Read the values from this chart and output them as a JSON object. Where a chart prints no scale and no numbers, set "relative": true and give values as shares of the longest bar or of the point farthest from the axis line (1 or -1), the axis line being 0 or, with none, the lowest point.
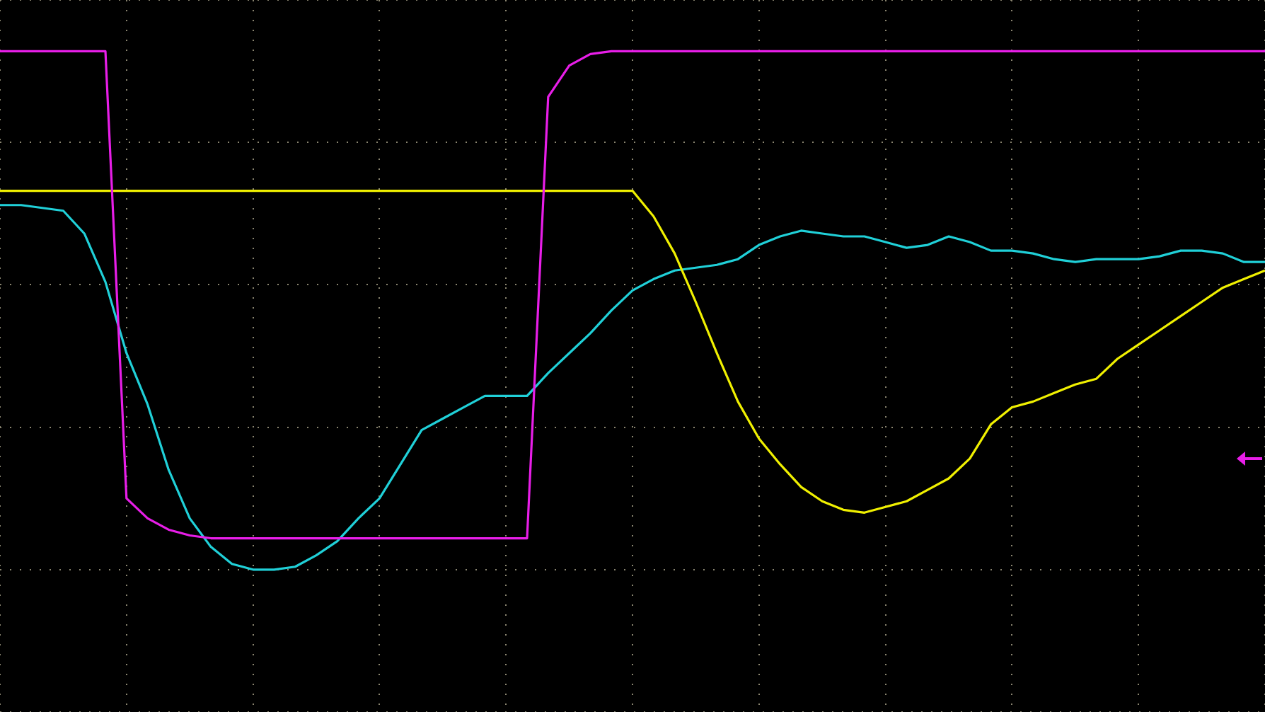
{
  "chart_data": {
    "type": "line",
    "relative": true,
    "grid": true,
    "marker": "none",
    "line_style": "solid",
    "categories": [
      null,
      null,
      null,
      null,
      null,
      null,
      null,
      null,
      null,
      null,
      null,
      null,
      null,
      null,
      null,
      null,
      null,
      null,
      null,
      null,
      null,
      null,
      null,
      null,
      null,
      null,
      null,
      null,
      null,
      null,
      null,
      null,
      null,
      null,
      null,
      null,
      null,
      null,
      null,
      null,
      null,
      null,
      null,
      null,
      null,
      null,
      null,
      null,
      null,
      null,
      null,
      null,
      null,
      null,
      null,
      null,
      null,
      null,
      null,
      null,
      null
    ],
    "series": [
      {
        "color": "#e81ee8",
        "values": [
          0.82,
          0.82,
          0.82,
          0.82,
          0.82,
          0.82,
          -0.75,
          -0.82,
          -0.86,
          -0.88,
          -0.89,
          -0.89,
          -0.89,
          -0.89,
          -0.89,
          -0.89,
          -0.89,
          -0.89,
          -0.89,
          -0.89,
          -0.89,
          -0.89,
          -0.89,
          -0.89,
          -0.89,
          -0.89,
          0.66,
          0.77,
          0.81,
          0.82,
          0.82,
          0.82,
          0.82,
          0.82,
          0.82,
          0.82,
          0.82,
          0.82,
          0.82,
          0.82,
          0.82,
          0.82,
          0.82,
          0.82,
          0.82,
          0.82,
          0.82,
          0.82,
          0.82,
          0.82,
          0.82,
          0.82,
          0.82,
          0.82,
          0.82,
          0.82,
          0.82,
          0.82,
          0.82,
          0.82,
          0.82
        ]
      },
      {
        "color": "#f0f000",
        "values": [
          0.33,
          0.33,
          0.33,
          0.33,
          0.33,
          0.33,
          0.33,
          0.33,
          0.33,
          0.33,
          0.33,
          0.33,
          0.33,
          0.33,
          0.33,
          0.33,
          0.33,
          0.33,
          0.33,
          0.33,
          0.33,
          0.33,
          0.33,
          0.33,
          0.33,
          0.33,
          0.33,
          0.33,
          0.33,
          0.33,
          0.33,
          0.24,
          0.11,
          -0.06,
          -0.24,
          -0.41,
          -0.54,
          -0.63,
          -0.71,
          -0.76,
          -0.79,
          -0.8,
          -0.78,
          -0.76,
          -0.72,
          -0.68,
          -0.61,
          -0.49,
          -0.43,
          -0.41,
          -0.38,
          -0.35,
          -0.33,
          -0.26,
          -0.21,
          -0.16,
          -0.11,
          -0.06,
          -0.01,
          0.02,
          0.05
        ]
      },
      {
        "color": "#20d0d8",
        "values": [
          0.28,
          0.28,
          0.27,
          0.26,
          0.18,
          0.01,
          -0.24,
          -0.42,
          -0.65,
          -0.82,
          -0.92,
          -0.98,
          -1,
          -1,
          -0.99,
          -0.95,
          -0.9,
          -0.82,
          -0.75,
          -0.63,
          -0.51,
          -0.47,
          -0.43,
          -0.39,
          -0.39,
          -0.39,
          -0.31,
          -0.24,
          -0.17,
          -0.09,
          -0.02,
          0.02,
          0.05,
          0.06,
          0.07,
          0.09,
          0.14,
          0.17,
          0.19,
          0.18,
          0.17,
          0.17,
          0.15,
          0.13,
          0.14,
          0.17,
          0.15,
          0.12,
          0.12,
          0.11,
          0.09,
          0.08,
          0.09,
          0.09,
          0.09,
          0.1,
          0.12,
          0.12,
          0.11,
          0.08,
          0.08
        ]
      }
    ]
  }
}
